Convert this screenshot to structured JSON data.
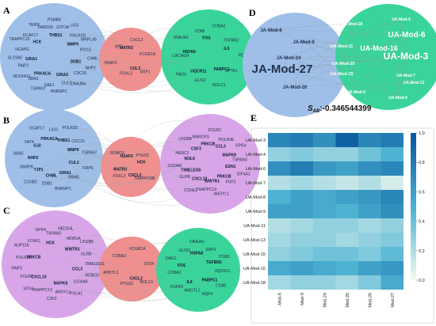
{
  "panels": {
    "A": {
      "label": "A",
      "blue": {
        "hub": [
          "DDB1",
          "GRIA2",
          "PRKACA",
          "GRIA1",
          "HCK",
          "THBS1",
          "MMP9"
        ],
        "small": [
          "NHP2",
          "CDC20",
          "DNAJB4",
          "CUL3",
          "HNRNPC",
          "SAE1",
          "TSPAN7",
          "UBA2",
          "NDUFA11",
          "PAIP2",
          "SLC9A2",
          "NCAPG",
          "TRAPPC10",
          "DCAF17",
          "TRIP6",
          "FAM168",
          "PSMB8",
          "GTF3A",
          "LIG3",
          "POLR3D",
          "MRPL49",
          "IPO13",
          "CHML"
        ]
      },
      "red": {
        "hub": [
          "CUL3",
          "MATR3"
        ],
        "small": [
          "MTF1",
          "FOXL2",
          "H2AFX",
          "XPC",
          "CXCL2",
          "FCGR1A"
        ]
      },
      "green": {
        "hub": [
          "UQCR11",
          "HSPA8",
          "FOS",
          "IL6",
          "PABPC1"
        ],
        "small": [
          "NOLC1",
          "GLIS2",
          "PADX",
          "CACNG4",
          "DNAJA1",
          "CD88",
          "COBA2",
          "TGFBR2",
          "PEN",
          "SPTA1"
        ]
      }
    },
    "B": {
      "label": "B",
      "blue": {
        "hub": [
          "CUL3",
          "GRIA1",
          "CHML",
          "TJP1",
          "NHP2",
          "GJ2",
          "PRKACA",
          "THBS1",
          "MMP9"
        ],
        "small": [
          "TRIP6",
          "RBM5",
          "HNRNPC",
          "DDB1",
          "CCNB2",
          "SNRPB",
          "UBA2",
          "FAT4",
          "DCAF17",
          "LIG3",
          "POLR3D",
          "CDC20",
          "TSPAN7"
        ]
      },
      "red": {
        "hub": [
          "CXCL2",
          "MATR3",
          "H2AFX",
          "HCK"
        ],
        "small": [
          "TRAPPC8B",
          "FOXL2",
          "ROBO3",
          "PTGS2"
        ]
      },
      "purple": {
        "hub": [
          "CXCL10",
          "TIMELESS",
          "NOL6",
          "CSF3",
          "PRKCB",
          "CCL3",
          "MAPK8",
          "EDN1",
          "PRKCB",
          "WWTR1"
        ],
        "small": [
          "AHDYL1",
          "TRAPPC13",
          "CCNE1",
          "GLRB",
          "S100A8",
          "HERC2",
          "LIN28B",
          "MARCKS",
          "FCER2",
          "POLR3E",
          "GPR4",
          "TSPAN3",
          "EIF4A1",
          "FGF2"
        ]
      }
    },
    "C": {
      "label": "C",
      "purple": {
        "hub": [
          "CCL3",
          "MAPK8",
          "CXCL10",
          "PRKCB",
          "HCK",
          "WWTR1"
        ],
        "small": [
          "ROBO3",
          "S100A8",
          "POLA1",
          "AHDYL1",
          "CSF3",
          "TRAPPC13",
          "NTN1",
          "FCER2",
          "PAIP2",
          "POLR3E",
          "NUP155",
          "FOXK1",
          "GPR4",
          "TSPAN3",
          "NEDD4L",
          "MOB1A",
          "LIN28B",
          "GLRB",
          "TIMELESS"
        ]
      },
      "red": {
        "hub": [
          "CXCL2"
        ],
        "small": [
          "NOLC1",
          "PTGS2",
          "AHDYL1",
          "COBA2",
          "FCGR1A",
          "STX4"
        ]
      },
      "green": {
        "hub": [
          "IL6",
          "FOS",
          "HSPA8",
          "TGFBR2",
          "PABPC1"
        ],
        "small": [
          "NQF4",
          "AMOTL1",
          "FGFR2",
          "COBA2",
          "DAG1",
          "GLIS3",
          "DNAJA1",
          "SRP9",
          "ITGB1",
          "UQCR11",
          "CD88"
        ]
      }
    }
  },
  "panelD": {
    "label": "D",
    "left_module": "JA-Mod-27",
    "left_small": [
      "JA-Mod-6",
      "JA-Mod-9",
      "JA-Mod-24",
      "JA-Mod-26"
    ],
    "center_small": [
      "UA-Mod-11",
      "UA-Mod-25",
      "UA-Mod-15"
    ],
    "right_modules": [
      "UA-Mod-6",
      "UA-Mod-3",
      "UA-Mod-16"
    ],
    "right_small": [
      "UA-Mod-18",
      "UA-Mod-4",
      "UA-Mod-7",
      "UA-Mod-13",
      "UA-Mod-8",
      "UA-Mod-9"
    ],
    "score_label": "S",
    "score_subscript": "AB",
    "score_value": ":-0.346544399"
  },
  "colors": {
    "blue_module": "#9fbfe8",
    "red_module": "#f18f8f",
    "green_module": "#39d49a",
    "purple_module": "#d8a6e8",
    "edge": "#9aa7a9",
    "heat_low": "#f7fcf0",
    "heat_mid": "#4eb3d3",
    "heat_high": "#08589e"
  },
  "chart_data": {
    "type": "heatmap",
    "title": "",
    "panel_label": "E",
    "xlabel": "",
    "ylabel": "",
    "x": [
      "JA-Mod-6",
      "JA-Mod-9",
      "JA-Mod-24",
      "JA-Mod-25",
      "JA-Mod-26",
      "JA-Mod-27"
    ],
    "x_tick_labels": [
      "-Mod-6",
      "-Mod-9",
      "Mod-24",
      "Mod-25",
      "Mod-26",
      "Mod-27"
    ],
    "y": [
      "UA-Mod-3",
      "UA-Mod-4",
      "UA-Mod-6",
      "UA-Mod-7",
      "UA-Mod-8",
      "UA-Mod-9",
      "UA-Mod-11",
      "UA-Mod-13",
      "UA-Mod-15",
      "UA-Mod-16",
      "UA-Mod-18"
    ],
    "values": [
      [
        0.75,
        0.8,
        0.7,
        0.95,
        0.75,
        0.8
      ],
      [
        0.3,
        0.35,
        0.3,
        0.3,
        0.4,
        0.5
      ],
      [
        0.7,
        0.8,
        0.65,
        0.6,
        0.7,
        0.75
      ],
      [
        0.2,
        0.25,
        0.2,
        0.15,
        0.2,
        0.1
      ],
      [
        0.5,
        0.6,
        0.55,
        0.6,
        0.65,
        0.75
      ],
      [
        0.6,
        0.6,
        0.55,
        0.5,
        0.6,
        0.7
      ],
      [
        0.2,
        0.25,
        0.3,
        0.3,
        0.25,
        0.3
      ],
      [
        0.25,
        0.3,
        0.3,
        0.25,
        0.3,
        0.35
      ],
      [
        0.3,
        0.35,
        0.4,
        0.4,
        0.35,
        0.45
      ],
      [
        0.55,
        0.6,
        0.55,
        0.5,
        0.6,
        0.65
      ],
      [
        0.25,
        0.3,
        0.3,
        0.25,
        0.35,
        0.55
      ]
    ],
    "colorbar_range": [
      0.0,
      1.0
    ],
    "colorbar_ticks": [
      "0.0",
      "0.2",
      "0.4",
      "0.6",
      "0.8",
      "1.0"
    ],
    "legend": "colorbar right"
  }
}
